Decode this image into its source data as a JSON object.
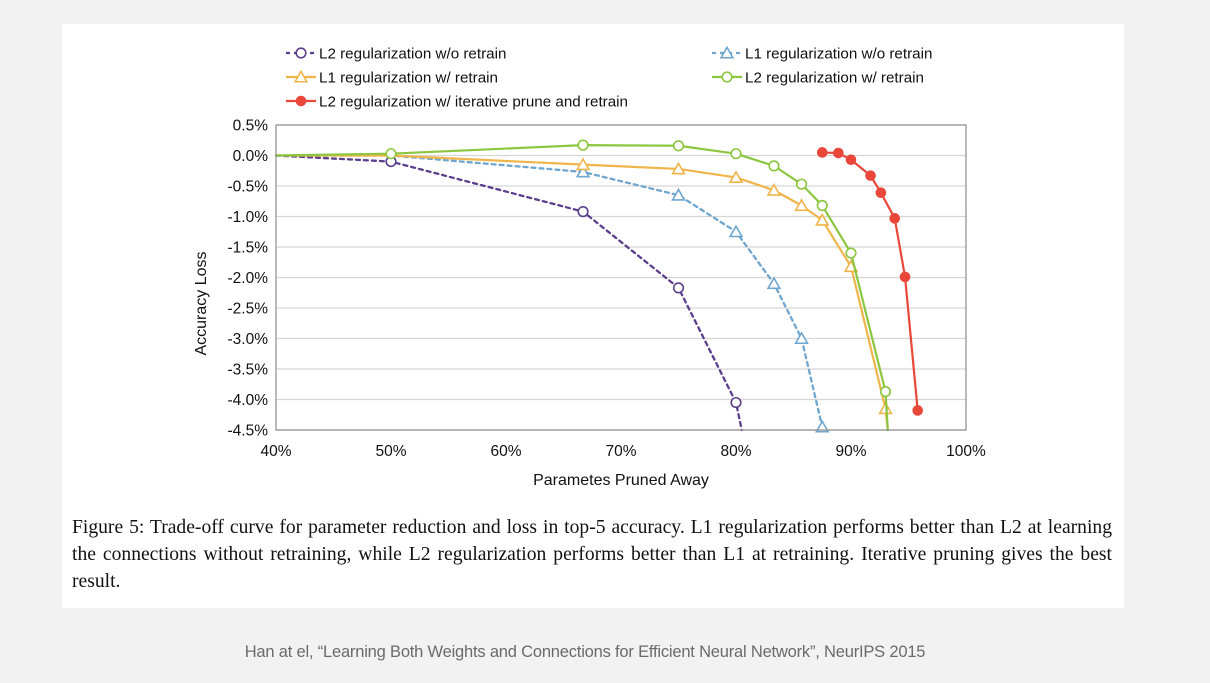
{
  "caption": "Figure 5: Trade-off curve for parameter reduction and loss in top-5 accuracy. L1 regularization performs better than L2 at learning the connections without retraining, while L2 regularization performs better than L1 at retraining. Iterative pruning gives the best result.",
  "citation": "Han at el, “Learning Both Weights and Connections for Efficient Neural Network”, NeurIPS 2015",
  "chart_data": {
    "type": "line",
    "title": "",
    "xlabel": "Parametes Pruned Away",
    "ylabel": "Accuracy Loss",
    "xlim": [
      40,
      100
    ],
    "ylim": [
      -4.5,
      0.5
    ],
    "x_ticks": [
      40,
      50,
      60,
      70,
      80,
      90,
      100
    ],
    "x_tick_labels": [
      "40%",
      "50%",
      "60%",
      "70%",
      "80%",
      "90%",
      "100%"
    ],
    "y_ticks": [
      0.5,
      0.0,
      -0.5,
      -1.0,
      -1.5,
      -2.0,
      -2.5,
      -3.0,
      -3.5,
      -4.0,
      -4.5
    ],
    "y_tick_labels": [
      "0.5%",
      "0.0%",
      "-0.5%",
      "-1.0%",
      "-1.5%",
      "-2.0%",
      "-2.5%",
      "-3.0%",
      "-3.5%",
      "-4.0%",
      "-4.5%"
    ],
    "grid": "horizontal",
    "legend_position": "top",
    "series": [
      {
        "name": "L2 regularization w/o retrain",
        "color": "#5b3f8c",
        "marker": "circle-open",
        "dashed": true,
        "x": [
          40,
          50,
          66.7,
          75,
          80,
          80.5
        ],
        "y": [
          0.0,
          -0.1,
          -0.92,
          -2.17,
          -4.05,
          -4.5
        ],
        "marked": [
          false,
          true,
          true,
          true,
          true,
          false
        ]
      },
      {
        "name": "L1 regularization w/o retrain",
        "color": "#6fa6cf",
        "marker": "triangle-open",
        "dashed": true,
        "x": [
          40,
          50,
          66.7,
          75,
          80,
          83.3,
          85.7,
          87.5
        ],
        "y": [
          0.0,
          0.0,
          -0.27,
          -0.65,
          -1.25,
          -2.1,
          -3.0,
          -4.45
        ],
        "marked": [
          false,
          false,
          true,
          true,
          true,
          true,
          true,
          true
        ]
      },
      {
        "name": "L1 regularization w/ retrain",
        "color": "#f0b54a",
        "marker": "triangle-open",
        "dashed": false,
        "x": [
          40,
          50,
          66.7,
          75,
          80,
          83.3,
          85.7,
          87.5,
          90,
          93,
          93.2
        ],
        "y": [
          0.0,
          0.0,
          -0.15,
          -0.22,
          -0.36,
          -0.57,
          -0.82,
          -1.06,
          -1.82,
          -4.15,
          -4.5
        ],
        "marked": [
          false,
          false,
          true,
          true,
          true,
          true,
          true,
          true,
          true,
          true,
          false
        ]
      },
      {
        "name": "L2 regularization w/ retrain",
        "color": "#8cc63f",
        "marker": "circle-open",
        "dashed": false,
        "x": [
          40,
          50,
          66.7,
          75,
          80,
          83.3,
          85.7,
          87.5,
          90,
          93,
          93.2
        ],
        "y": [
          0.0,
          0.03,
          0.17,
          0.16,
          0.03,
          -0.17,
          -0.47,
          -0.82,
          -1.6,
          -3.87,
          -4.5
        ],
        "marked": [
          false,
          true,
          true,
          true,
          true,
          true,
          true,
          true,
          true,
          true,
          false
        ]
      },
      {
        "name": "L2 regularization w/ iterative prune and retrain",
        "color": "#e8473a",
        "marker": "circle-filled",
        "dashed": false,
        "x": [
          87.5,
          88.9,
          90,
          91.7,
          92.6,
          93.8,
          94.7,
          95.8
        ],
        "y": [
          0.05,
          0.04,
          -0.07,
          -0.33,
          -0.61,
          -1.03,
          -1.99,
          -4.18
        ],
        "marked": [
          true,
          true,
          true,
          true,
          true,
          true,
          true,
          true
        ]
      }
    ]
  }
}
